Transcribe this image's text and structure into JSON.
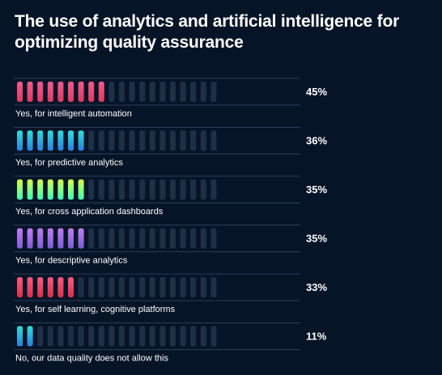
{
  "chart_data": {
    "type": "bar",
    "title": "The use of analytics and artificial intelligence for optimizing quality assurance",
    "total_segments": 20,
    "ylim": [
      0,
      100
    ],
    "categories": [
      "Yes, for intelligent automation",
      "Yes, for predictive analytics",
      "Yes, for cross application dashboards",
      "Yes, for descriptive analytics",
      "Yes, for self learning, cognitive platforms",
      "No, our data quality does not allow this"
    ],
    "values": [
      45,
      36,
      35,
      35,
      33,
      11
    ],
    "value_labels": [
      "45%",
      "36%",
      "35%",
      "35%",
      "33%",
      "11%"
    ],
    "filled_segments": [
      9,
      7,
      7,
      7,
      6,
      2
    ],
    "palettes": [
      [
        "#f05a8c",
        "#e23a5e"
      ],
      [
        "#2de0dc",
        "#2a7fe0"
      ],
      [
        "#d6ff4a",
        "#3dffb6"
      ],
      [
        "#c07cf0",
        "#7e5cd6"
      ],
      [
        "#ff5a7e",
        "#d83048"
      ],
      [
        "#2de0dc",
        "#2a7fe0"
      ]
    ],
    "colors": {
      "background": "#061427",
      "empty_segment": "#1f2f45",
      "frame": "#2b3d55"
    }
  }
}
